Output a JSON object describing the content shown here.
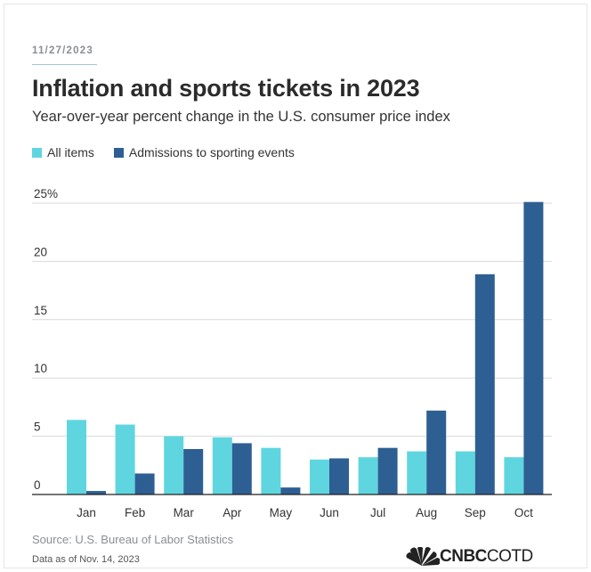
{
  "header": {
    "date": "11/27/2023",
    "title": "Inflation and sports tickets in 2023",
    "subtitle": "Year-over-year percent change in the U.S. consumer price index"
  },
  "legend": {
    "items": [
      {
        "label": "All items",
        "color": "#5fd6df"
      },
      {
        "label": "Admissions to sporting events",
        "color": "#2e5f93"
      }
    ]
  },
  "footer": {
    "source": "Source: U.S. Bureau of Labor Statistics",
    "as_of": "Data as of Nov. 14, 2023",
    "brand_bold": "CNBC",
    "brand_light": "COTD"
  },
  "chart_data": {
    "type": "bar",
    "categories": [
      "Jan",
      "Feb",
      "Mar",
      "Apr",
      "May",
      "Jun",
      "Jul",
      "Aug",
      "Sep",
      "Oct"
    ],
    "series": [
      {
        "name": "All items",
        "color": "#5fd6df",
        "values": [
          6.4,
          6.0,
          5.0,
          4.9,
          4.0,
          3.0,
          3.2,
          3.7,
          3.7,
          3.2
        ]
      },
      {
        "name": "Admissions to sporting events",
        "color": "#2e5f93",
        "values": [
          0.3,
          1.8,
          3.9,
          4.4,
          0.6,
          3.1,
          4.0,
          7.2,
          18.9,
          25.1
        ]
      }
    ],
    "yticks": [
      0,
      5,
      10,
      15,
      20,
      25
    ],
    "ytick_labels": [
      "0",
      "5",
      "10",
      "15",
      "20",
      "25%"
    ],
    "ylim": [
      0,
      25
    ],
    "xlabel": "",
    "ylabel": "",
    "grid": true,
    "legend_position": "top-left"
  }
}
